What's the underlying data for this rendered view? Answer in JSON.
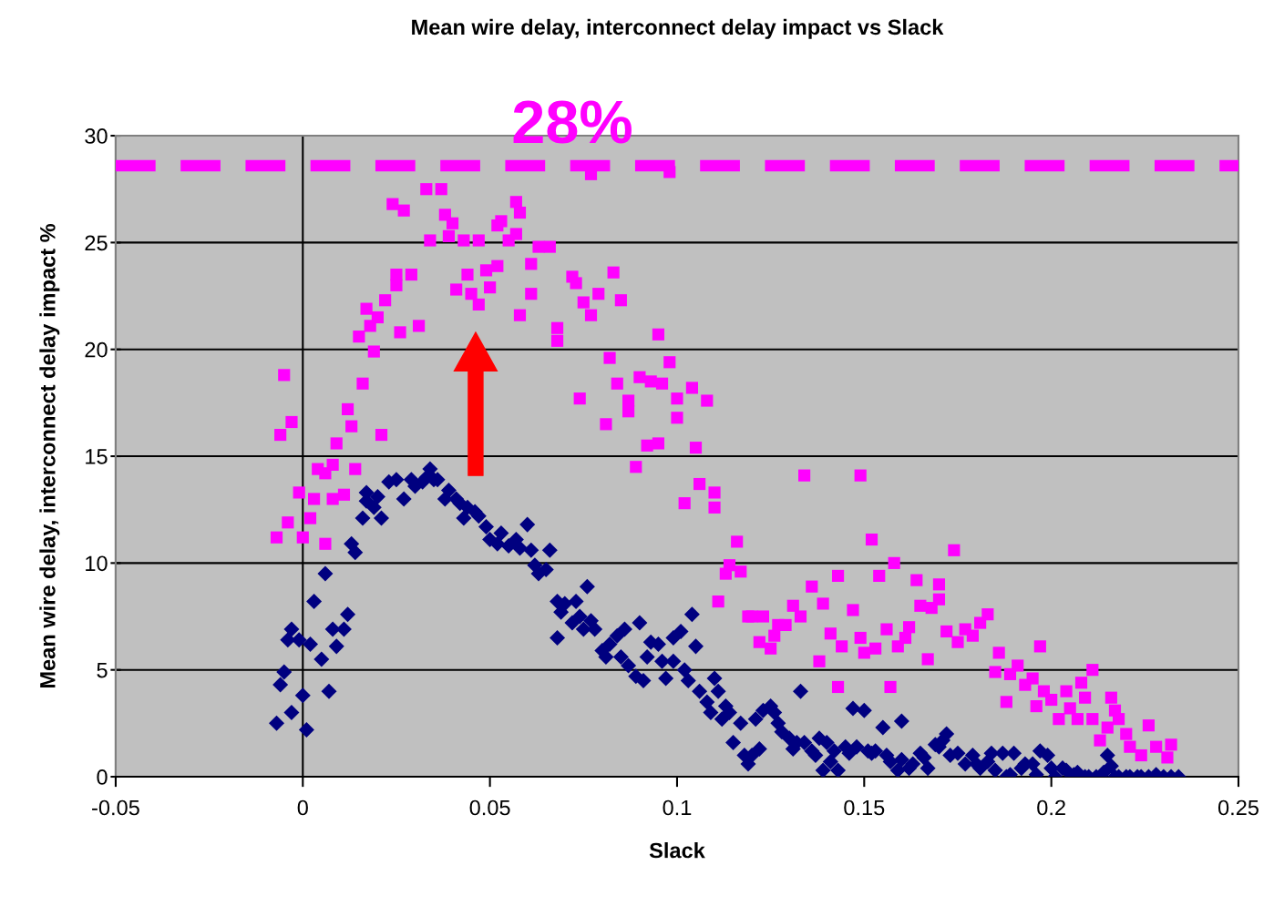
{
  "chart_data": {
    "type": "scatter",
    "title": "Mean wire delay, interconnect delay impact vs Slack",
    "xlabel": "Slack",
    "ylabel": "Mean wire delay, interconnect delay impact %",
    "xlim": [
      -0.05,
      0.25
    ],
    "xticks": [
      -0.05,
      0,
      0.05,
      0.1,
      0.15,
      0.2,
      0.25
    ],
    "ylim": [
      0,
      30
    ],
    "yticks": [
      0,
      5,
      10,
      15,
      20,
      25,
      30
    ],
    "grid": "y",
    "legend": false,
    "series": [
      {
        "color": "#ff00ff",
        "marker": "square",
        "x": [
          -0.007,
          -0.005,
          -0.006,
          -0.003,
          -0.004,
          -0.001,
          0.0,
          0.002,
          0.003,
          0.004,
          0.006,
          0.006,
          0.008,
          0.008,
          0.009,
          0.011,
          0.012,
          0.013,
          0.014,
          0.015,
          0.016,
          0.017,
          0.018,
          0.019,
          0.02,
          0.021,
          0.022,
          0.024,
          0.025,
          0.027,
          0.025,
          0.026,
          0.029,
          0.031,
          0.033,
          0.034,
          0.037,
          0.038,
          0.039,
          0.04,
          0.041,
          0.043,
          0.044,
          0.045,
          0.047,
          0.047,
          0.049,
          0.05,
          0.052,
          0.053,
          0.052,
          0.055,
          0.057,
          0.057,
          0.058,
          0.058,
          0.061,
          0.061,
          0.063,
          0.066,
          0.068,
          0.068,
          0.072,
          0.073,
          0.074,
          0.075,
          0.077,
          0.077,
          0.079,
          0.081,
          0.082,
          0.083,
          0.084,
          0.085,
          0.087,
          0.087,
          0.089,
          0.09,
          0.092,
          0.093,
          0.095,
          0.095,
          0.096,
          0.098,
          0.098,
          0.1,
          0.1,
          0.102,
          0.104,
          0.105,
          0.106,
          0.108,
          0.11,
          0.11,
          0.111,
          0.113,
          0.114,
          0.116,
          0.117,
          0.119,
          0.12,
          0.122,
          0.123,
          0.125,
          0.126,
          0.127,
          0.129,
          0.131,
          0.133,
          0.134,
          0.136,
          0.138,
          0.139,
          0.141,
          0.143,
          0.143,
          0.144,
          0.147,
          0.149,
          0.149,
          0.15,
          0.152,
          0.153,
          0.154,
          0.156,
          0.157,
          0.158,
          0.159,
          0.161,
          0.162,
          0.164,
          0.165,
          0.167,
          0.168,
          0.17,
          0.17,
          0.172,
          0.174,
          0.175,
          0.177,
          0.179,
          0.181,
          0.183,
          0.185,
          0.186,
          0.188,
          0.189,
          0.191,
          0.193,
          0.195,
          0.196,
          0.197,
          0.198,
          0.2,
          0.202,
          0.204,
          0.205,
          0.207,
          0.208,
          0.209,
          0.211,
          0.211,
          0.213,
          0.215,
          0.216,
          0.217,
          0.218,
          0.22,
          0.221,
          0.224,
          0.226,
          0.228,
          0.231,
          0.232
        ],
        "values": [
          11.2,
          18.8,
          16.0,
          16.6,
          11.9,
          13.3,
          11.2,
          12.1,
          13.0,
          14.4,
          14.2,
          10.9,
          13.0,
          14.6,
          15.6,
          13.2,
          17.2,
          16.4,
          14.4,
          20.6,
          18.4,
          21.9,
          21.1,
          19.9,
          21.5,
          16.0,
          22.3,
          26.8,
          23.0,
          26.5,
          23.5,
          20.8,
          23.5,
          21.1,
          27.5,
          25.1,
          27.5,
          26.3,
          25.3,
          25.9,
          22.8,
          25.1,
          23.5,
          22.6,
          25.1,
          22.1,
          23.7,
          22.9,
          25.8,
          26.0,
          23.9,
          25.1,
          26.9,
          25.4,
          26.4,
          21.6,
          24.0,
          22.6,
          24.8,
          24.8,
          20.4,
          21.0,
          23.4,
          23.1,
          17.7,
          22.2,
          28.2,
          21.6,
          22.6,
          16.5,
          19.6,
          23.6,
          18.4,
          22.3,
          17.1,
          17.6,
          14.5,
          18.7,
          15.5,
          18.5,
          20.7,
          15.6,
          18.4,
          19.4,
          28.3,
          17.7,
          16.8,
          12.8,
          18.2,
          15.4,
          13.7,
          17.6,
          12.6,
          13.3,
          8.2,
          9.5,
          9.9,
          11.0,
          9.6,
          7.5,
          7.5,
          6.3,
          7.5,
          6.0,
          6.6,
          7.1,
          7.1,
          8.0,
          7.5,
          14.1,
          8.9,
          5.4,
          8.1,
          6.7,
          4.2,
          9.4,
          6.1,
          7.8,
          14.1,
          6.5,
          5.8,
          11.1,
          6.0,
          9.4,
          6.9,
          4.2,
          10.0,
          6.1,
          6.5,
          7.0,
          9.2,
          8.0,
          5.5,
          7.9,
          8.3,
          9.0,
          6.8,
          10.6,
          6.3,
          6.9,
          6.6,
          7.2,
          7.6,
          4.9,
          5.8,
          3.5,
          4.8,
          5.2,
          4.3,
          4.6,
          3.3,
          6.1,
          4.0,
          3.6,
          2.7,
          4.0,
          3.2,
          2.7,
          4.4,
          3.7,
          5.0,
          2.7,
          1.7,
          2.3,
          3.7,
          3.1,
          2.7,
          2.0,
          1.4,
          1.0,
          2.4,
          1.4,
          0.9,
          1.5
        ]
      },
      {
        "color": "#000080",
        "marker": "diamond",
        "x": [
          -0.007,
          -0.006,
          -0.005,
          -0.004,
          -0.003,
          -0.003,
          -0.001,
          0.0,
          0.001,
          0.002,
          0.003,
          0.005,
          0.006,
          0.007,
          0.008,
          0.009,
          0.011,
          0.012,
          0.013,
          0.014,
          0.016,
          0.017,
          0.017,
          0.019,
          0.02,
          0.021,
          0.023,
          0.025,
          0.027,
          0.029,
          0.03,
          0.032,
          0.033,
          0.034,
          0.035,
          0.036,
          0.038,
          0.039,
          0.041,
          0.042,
          0.043,
          0.044,
          0.046,
          0.047,
          0.049,
          0.05,
          0.052,
          0.053,
          0.055,
          0.057,
          0.058,
          0.06,
          0.061,
          0.062,
          0.063,
          0.065,
          0.066,
          0.068,
          0.068,
          0.069,
          0.07,
          0.072,
          0.073,
          0.074,
          0.075,
          0.076,
          0.077,
          0.078,
          0.08,
          0.081,
          0.082,
          0.084,
          0.085,
          0.086,
          0.087,
          0.089,
          0.09,
          0.091,
          0.092,
          0.093,
          0.095,
          0.096,
          0.097,
          0.099,
          0.099,
          0.101,
          0.102,
          0.103,
          0.104,
          0.105,
          0.106,
          0.108,
          0.109,
          0.11,
          0.111,
          0.112,
          0.113,
          0.114,
          0.115,
          0.117,
          0.118,
          0.119,
          0.12,
          0.121,
          0.122,
          0.123,
          0.125,
          0.126,
          0.127,
          0.128,
          0.13,
          0.131,
          0.132,
          0.133,
          0.134,
          0.136,
          0.137,
          0.138,
          0.139,
          0.14,
          0.141,
          0.142,
          0.143,
          0.145,
          0.146,
          0.147,
          0.148,
          0.15,
          0.151,
          0.152,
          0.153,
          0.155,
          0.156,
          0.157,
          0.159,
          0.16,
          0.16,
          0.162,
          0.163,
          0.165,
          0.166,
          0.167,
          0.169,
          0.17,
          0.171,
          0.172,
          0.173,
          0.175,
          0.177,
          0.179,
          0.18,
          0.181,
          0.183,
          0.184,
          0.185,
          0.187,
          0.188,
          0.189,
          0.19,
          0.192,
          0.193,
          0.195,
          0.196,
          0.197,
          0.199,
          0.2,
          0.201,
          0.203,
          0.204,
          0.206,
          0.207,
          0.209,
          0.21,
          0.212,
          0.214,
          0.215,
          0.216,
          0.217,
          0.218,
          0.22,
          0.221,
          0.223,
          0.224,
          0.226,
          0.228,
          0.23,
          0.232,
          0.234
        ],
        "values": [
          2.5,
          4.3,
          4.9,
          6.4,
          6.9,
          3.0,
          6.4,
          3.8,
          2.2,
          6.2,
          8.2,
          5.5,
          9.5,
          4.0,
          6.9,
          6.1,
          6.9,
          7.6,
          10.9,
          10.5,
          12.1,
          12.9,
          13.3,
          12.6,
          13.1,
          12.1,
          13.8,
          13.9,
          13.0,
          13.9,
          13.6,
          13.8,
          14.0,
          14.4,
          13.9,
          13.9,
          13.0,
          13.4,
          13.0,
          12.8,
          12.1,
          12.6,
          12.4,
          12.2,
          11.7,
          11.1,
          10.9,
          11.4,
          10.8,
          11.1,
          10.7,
          11.8,
          10.6,
          9.9,
          9.5,
          9.7,
          10.6,
          8.2,
          6.5,
          7.7,
          8.1,
          7.2,
          8.2,
          7.5,
          6.9,
          8.9,
          7.3,
          6.9,
          5.9,
          5.6,
          6.2,
          6.6,
          5.6,
          6.9,
          5.2,
          4.7,
          7.2,
          4.5,
          5.6,
          6.3,
          6.2,
          5.4,
          4.6,
          6.5,
          5.4,
          6.8,
          5.0,
          4.5,
          7.6,
          6.1,
          4.0,
          3.5,
          3.0,
          4.6,
          4.0,
          2.7,
          3.3,
          3.0,
          1.6,
          2.5,
          1.0,
          0.6,
          1.0,
          2.7,
          1.3,
          3.1,
          3.3,
          3.0,
          2.5,
          2.1,
          1.8,
          1.3,
          1.6,
          4.0,
          1.6,
          1.2,
          1.0,
          1.8,
          0.3,
          1.6,
          0.7,
          1.2,
          0.3,
          1.4,
          1.1,
          3.2,
          1.4,
          3.1,
          1.2,
          1.1,
          1.2,
          2.3,
          1.0,
          0.7,
          0.3,
          2.6,
          0.8,
          0.4,
          0.6,
          1.1,
          0.9,
          0.4,
          1.5,
          1.4,
          1.7,
          2.0,
          1.0,
          1.1,
          0.6,
          1.0,
          0.6,
          0.4,
          0.7,
          1.1,
          0.3,
          1.1,
          0.0,
          0.1,
          1.1,
          0.4,
          0.6,
          0.6,
          0.1,
          1.2,
          1.0,
          0.4,
          0.0,
          0.4,
          0.3,
          0.1,
          0.2,
          0.0,
          0.0,
          0.0,
          0.2,
          1.0,
          0.5,
          0.0,
          0.0,
          0.0,
          0.0,
          0.0,
          0.0,
          0.0,
          0.1,
          0.0,
          0.0,
          0.0
        ]
      }
    ],
    "ref_lines": [
      {
        "axis": "y",
        "value": 28.6,
        "color": "#ff00ff",
        "line_style": "dashed"
      },
      {
        "axis": "x",
        "value": 0,
        "color": "#000000",
        "line_style": "solid"
      }
    ],
    "annotations": [
      {
        "text": "28%",
        "x": 0.072,
        "y": 28.6
      }
    ]
  }
}
